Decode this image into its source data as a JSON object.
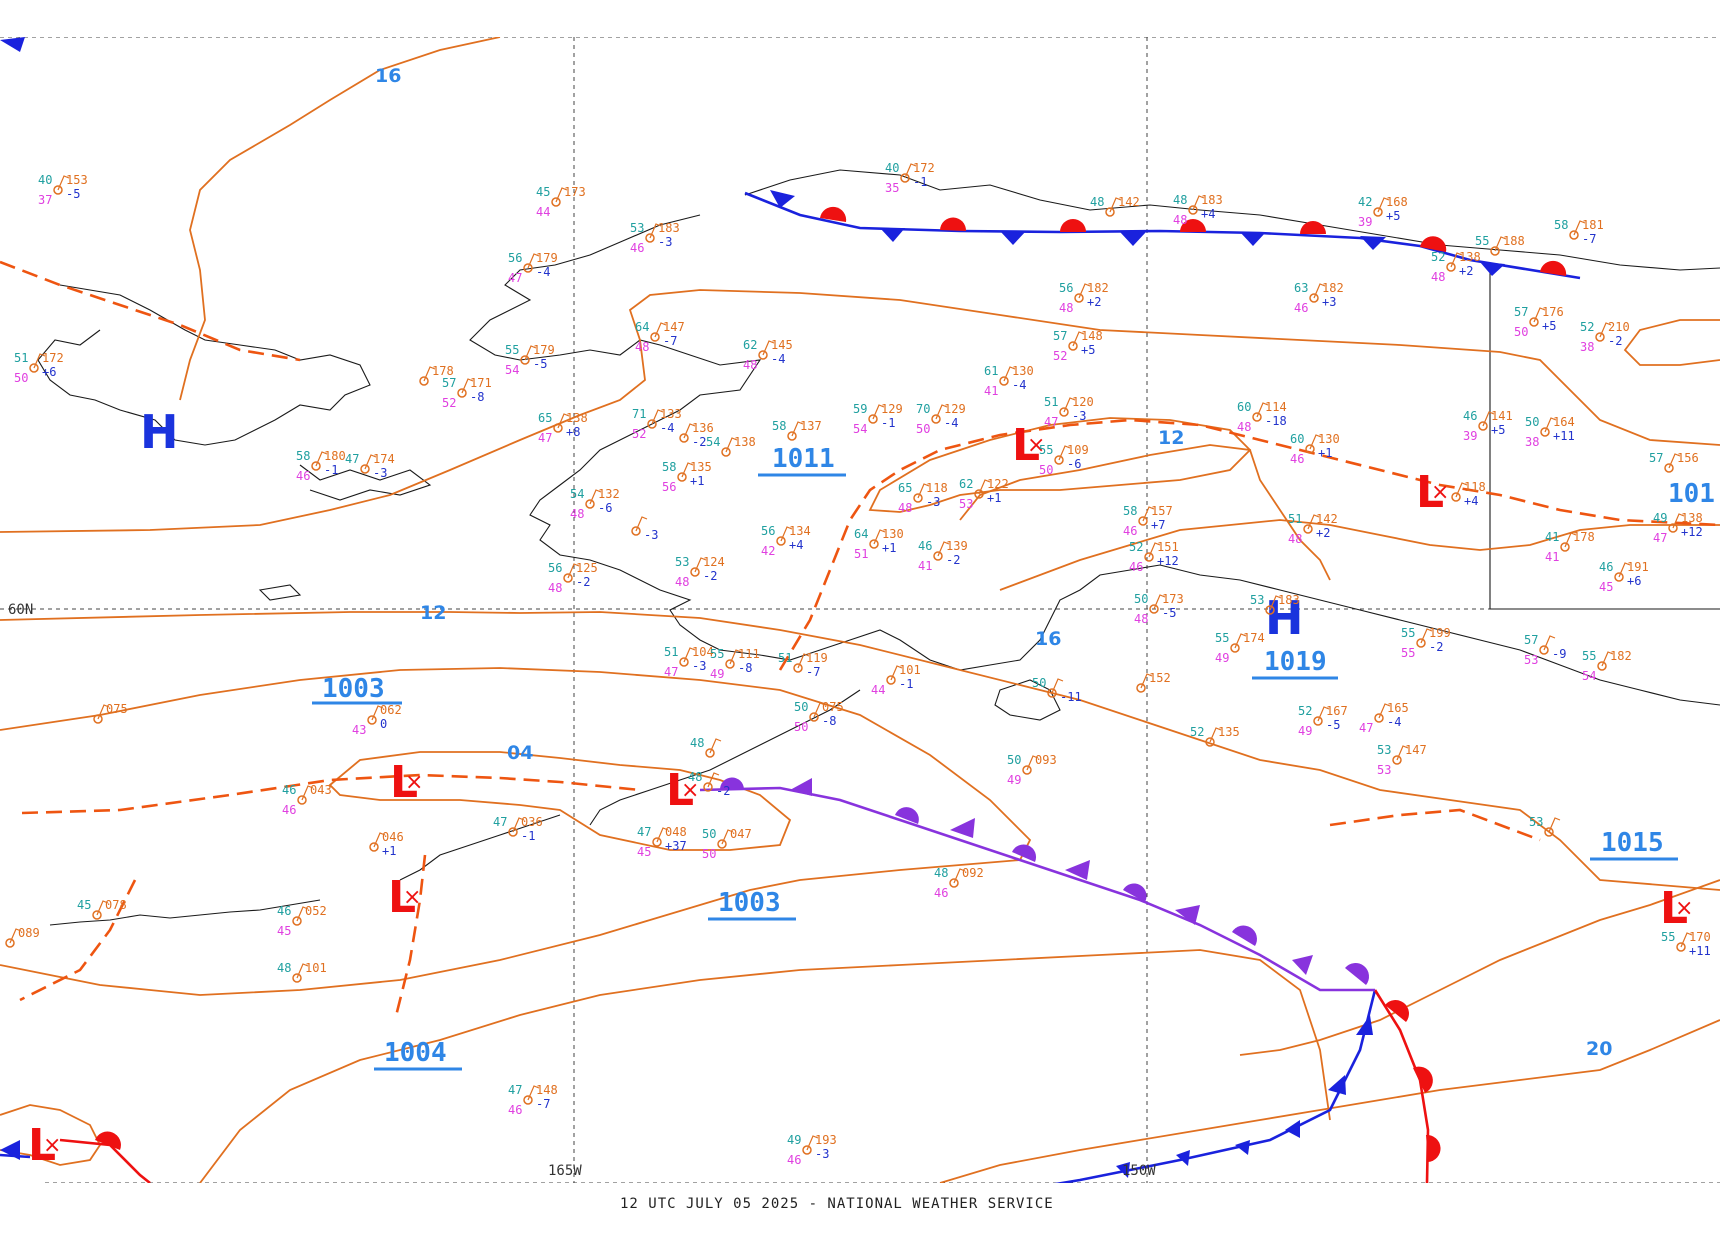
{
  "footer": {
    "text": "12 UTC JULY 05 2025 - NATIONAL WEATHER SERVICE"
  },
  "colors": {
    "isobar": "#e07020",
    "label": "#2f86e6",
    "high": "#1a33dd",
    "low": "#ee1111",
    "cold_front": "#1a22dd",
    "warm_front": "#ee1111",
    "occluded_front": "#8833dd",
    "trough": "#ee5511",
    "temperature": "#20a0a0",
    "dewpoint": "#e040e0",
    "pressure": "#e07020",
    "tendency": "#2233cc"
  },
  "grid_labels": {
    "lat_60n": "60N",
    "lon_165w": "165W",
    "lon_150w": "150W"
  },
  "isobar_labels": [
    "16",
    "12",
    "12",
    "16",
    "04",
    "20"
  ],
  "centers": [
    {
      "type": "H",
      "value": ""
    },
    {
      "type": "H",
      "value": "1019"
    },
    {
      "type": "L",
      "value": "1011"
    },
    {
      "type": "L",
      "value": ""
    },
    {
      "type": "L",
      "value": "1003"
    },
    {
      "type": "L",
      "value": "1003"
    },
    {
      "type": "L",
      "value": ""
    },
    {
      "type": "L",
      "value": "1004"
    },
    {
      "type": "L",
      "value": "1015"
    },
    {
      "type": "L",
      "value": ""
    },
    {
      "type": "L",
      "value": "101"
    }
  ],
  "stations": [
    {
      "t": "40",
      "d": "37",
      "p": "153",
      "tend": "-5"
    },
    {
      "t": "45",
      "d": "44",
      "p": "173",
      "tend": ""
    },
    {
      "t": "40",
      "d": "35",
      "p": "172",
      "tend": "-1"
    },
    {
      "t": "53",
      "d": "46",
      "p": "183",
      "tend": "-3"
    },
    {
      "t": "56",
      "d": "47",
      "p": "179",
      "tend": "-4"
    },
    {
      "t": "51",
      "d": "50",
      "p": "172",
      "tend": "+6"
    },
    {
      "t": "",
      "d": "",
      "p": "178",
      "tend": ""
    },
    {
      "t": "57",
      "d": "52",
      "p": "171",
      "tend": "-8"
    },
    {
      "t": "55",
      "d": "54",
      "p": "179",
      "tend": "-5"
    },
    {
      "t": "64",
      "d": "48",
      "p": "147",
      "tend": "-7"
    },
    {
      "t": "62",
      "d": "48",
      "p": "145",
      "tend": "-4"
    },
    {
      "t": "65",
      "d": "47",
      "p": "138",
      "tend": "+8"
    },
    {
      "t": "71",
      "d": "52",
      "p": "133",
      "tend": "-4"
    },
    {
      "t": "",
      "d": "",
      "p": "136",
      "tend": "-2"
    },
    {
      "t": "58",
      "d": "46",
      "p": "180",
      "tend": "-1"
    },
    {
      "t": "47",
      "d": "",
      "p": "174",
      "tend": "-3"
    },
    {
      "t": "54",
      "d": "",
      "p": "138",
      "tend": ""
    },
    {
      "t": "58",
      "d": "56",
      "p": "135",
      "tend": "+1"
    },
    {
      "t": "58",
      "d": "",
      "p": "137",
      "tend": ""
    },
    {
      "t": "59",
      "d": "54",
      "p": "129",
      "tend": "-1"
    },
    {
      "t": "70",
      "d": "50",
      "p": "129",
      "tend": "-4"
    },
    {
      "t": "61",
      "d": "41",
      "p": "130",
      "tend": "-4"
    },
    {
      "t": "56",
      "d": "48",
      "p": "182",
      "tend": "+2"
    },
    {
      "t": "57",
      "d": "52",
      "p": "148",
      "tend": "+5"
    },
    {
      "t": "48",
      "d": "",
      "p": "142",
      "tend": ""
    },
    {
      "t": "48",
      "d": "48",
      "p": "183",
      "tend": "+4"
    },
    {
      "t": "42",
      "d": "39",
      "p": "168",
      "tend": "+5"
    },
    {
      "t": "55",
      "d": "",
      "p": "188",
      "tend": ""
    },
    {
      "t": "52",
      "d": "48",
      "p": "138",
      "tend": "+2"
    },
    {
      "t": "58",
      "d": "",
      "p": "181",
      "tend": "-7"
    },
    {
      "t": "63",
      "d": "46",
      "p": "182",
      "tend": "+3"
    },
    {
      "t": "57",
      "d": "50",
      "p": "176",
      "tend": "+5"
    },
    {
      "t": "52",
      "d": "38",
      "p": "210",
      "tend": "-2"
    },
    {
      "t": "54",
      "d": "48",
      "p": "132",
      "tend": "-6"
    },
    {
      "t": "",
      "d": "",
      "p": "",
      "tend": "-3"
    },
    {
      "t": "65",
      "d": "48",
      "p": "118",
      "tend": "-3"
    },
    {
      "t": "62",
      "d": "53",
      "p": "122",
      "tend": "+1"
    },
    {
      "t": "51",
      "d": "47",
      "p": "120",
      "tend": "-3"
    },
    {
      "t": "55",
      "d": "50",
      "p": "109",
      "tend": "-6"
    },
    {
      "t": "60",
      "d": "48",
      "p": "114",
      "tend": "-18"
    },
    {
      "t": "60",
      "d": "46",
      "p": "130",
      "tend": "+1"
    },
    {
      "t": "46",
      "d": "39",
      "p": "141",
      "tend": "+5"
    },
    {
      "t": "50",
      "d": "38",
      "p": "164",
      "tend": "+11"
    },
    {
      "t": "",
      "d": "",
      "p": "118",
      "tend": "+4"
    },
    {
      "t": "57",
      "d": "",
      "p": "156",
      "tend": ""
    },
    {
      "t": "49",
      "d": "47",
      "p": "138",
      "tend": "+12"
    },
    {
      "t": "56",
      "d": "42",
      "p": "134",
      "tend": "+4"
    },
    {
      "t": "64",
      "d": "51",
      "p": "130",
      "tend": "+1"
    },
    {
      "t": "46",
      "d": "41",
      "p": "139",
      "tend": "-2"
    },
    {
      "t": "58",
      "d": "46",
      "p": "157",
      "tend": "+7"
    },
    {
      "t": "51",
      "d": "48",
      "p": "142",
      "tend": "+2"
    },
    {
      "t": "41",
      "d": "41",
      "p": "178",
      "tend": ""
    },
    {
      "t": "46",
      "d": "45",
      "p": "191",
      "tend": "+6"
    },
    {
      "t": "53",
      "d": "48",
      "p": "124",
      "tend": "-2"
    },
    {
      "t": "56",
      "d": "48",
      "p": "125",
      "tend": "-2"
    },
    {
      "t": "51",
      "d": "47",
      "p": "104",
      "tend": "-3"
    },
    {
      "t": "55",
      "d": "49",
      "p": "111",
      "tend": "-8"
    },
    {
      "t": "51",
      "d": "",
      "p": "119",
      "tend": "-7"
    },
    {
      "t": "",
      "d": "44",
      "p": "101",
      "tend": "-1"
    },
    {
      "t": "52",
      "d": "46",
      "p": "151",
      "tend": "+12"
    },
    {
      "t": "50",
      "d": "48",
      "p": "173",
      "tend": "-5"
    },
    {
      "t": "53",
      "d": "",
      "p": "183",
      "tend": ""
    },
    {
      "t": "55",
      "d": "49",
      "p": "174",
      "tend": ""
    },
    {
      "t": "55",
      "d": "55",
      "p": "199",
      "tend": "-2"
    },
    {
      "t": "57",
      "d": "53",
      "p": "",
      "tend": "-9"
    },
    {
      "t": "55",
      "d": "54",
      "p": "182",
      "tend": ""
    },
    {
      "t": "",
      "d": "",
      "p": "152",
      "tend": ""
    },
    {
      "t": "50",
      "d": "",
      "p": "",
      "tend": "-11"
    },
    {
      "t": "52",
      "d": "49",
      "p": "167",
      "tend": "-5"
    },
    {
      "t": "",
      "d": "47",
      "p": "165",
      "tend": "-4"
    },
    {
      "t": "",
      "d": "",
      "p": "075",
      "tend": ""
    },
    {
      "t": "",
      "d": "43",
      "p": "062",
      "tend": "0"
    },
    {
      "t": "50",
      "d": "50",
      "p": "075",
      "tend": "-8"
    },
    {
      "t": "48",
      "d": "",
      "p": "",
      "tend": ""
    },
    {
      "t": "48",
      "d": "",
      "p": "",
      "tend": "-2"
    },
    {
      "t": "50",
      "d": "49",
      "p": "093",
      "tend": ""
    },
    {
      "t": "52",
      "d": "",
      "p": "135",
      "tend": ""
    },
    {
      "t": "53",
      "d": "53",
      "p": "147",
      "tend": ""
    },
    {
      "t": "46",
      "d": "46",
      "p": "043",
      "tend": ""
    },
    {
      "t": "47",
      "d": "",
      "p": "036",
      "tend": "-1"
    },
    {
      "t": "47",
      "d": "45",
      "p": "048",
      "tend": "+37"
    },
    {
      "t": "50",
      "d": "50",
      "p": "047",
      "tend": ""
    },
    {
      "t": "",
      "d": "",
      "p": "046",
      "tend": "+1"
    },
    {
      "t": "53",
      "d": "",
      "p": "",
      "tend": ""
    },
    {
      "t": "45",
      "d": "",
      "p": "078",
      "tend": ""
    },
    {
      "t": "46",
      "d": "45",
      "p": "052",
      "tend": ""
    },
    {
      "t": "",
      "d": "",
      "p": "089",
      "tend": ""
    },
    {
      "t": "48",
      "d": "",
      "p": "101",
      "tend": ""
    },
    {
      "t": "48",
      "d": "46",
      "p": "092",
      "tend": ""
    },
    {
      "t": "55",
      "d": "",
      "p": "170",
      "tend": "+11"
    },
    {
      "t": "47",
      "d": "46",
      "p": "148",
      "tend": "-7"
    },
    {
      "t": "49",
      "d": "46",
      "p": "193",
      "tend": "-3"
    }
  ]
}
